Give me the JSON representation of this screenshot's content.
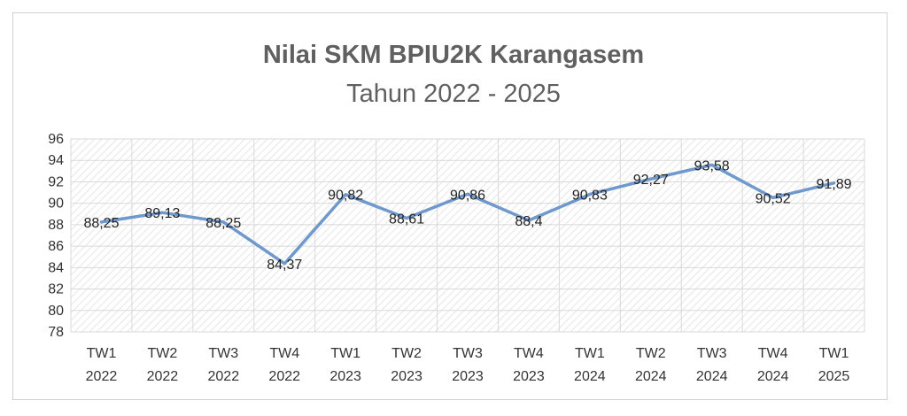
{
  "chart_data": {
    "type": "line",
    "title": "Nilai SKM BPIU2K Karangasem",
    "subtitle": "Tahun 2022 - 2025",
    "categories": [
      [
        "TW1",
        "2022"
      ],
      [
        "TW2",
        "2022"
      ],
      [
        "TW3",
        "2022"
      ],
      [
        "TW4",
        "2022"
      ],
      [
        "TW1",
        "2023"
      ],
      [
        "TW2",
        "2023"
      ],
      [
        "TW3",
        "2023"
      ],
      [
        "TW4",
        "2023"
      ],
      [
        "TW1",
        "2024"
      ],
      [
        "TW2",
        "2024"
      ],
      [
        "TW3",
        "2024"
      ],
      [
        "TW4",
        "2024"
      ],
      [
        "TW1",
        "2025"
      ]
    ],
    "values": [
      88.25,
      89.13,
      88.25,
      84.37,
      90.82,
      88.61,
      90.86,
      88.4,
      90.83,
      92.27,
      93.58,
      90.52,
      91.89
    ],
    "data_labels": [
      "88,25",
      "89,13",
      "88,25",
      "84,37",
      "90,82",
      "88,61",
      "90,86",
      "88,4",
      "90,83",
      "92,27",
      "93,58",
      "90,52",
      "91,89"
    ],
    "y_ticks": [
      "78",
      "80",
      "82",
      "84",
      "86",
      "88",
      "90",
      "92",
      "94",
      "96"
    ],
    "ylim": [
      78,
      96
    ],
    "ytick_step": 2,
    "grid": true,
    "legend": "none",
    "line_color": "#6f98cc"
  }
}
